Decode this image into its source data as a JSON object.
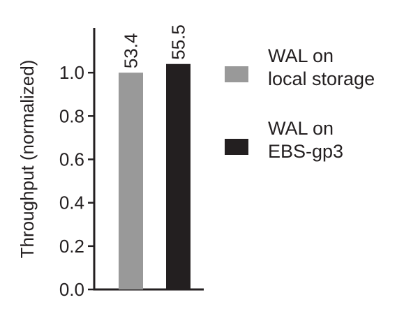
{
  "chart_data": {
    "type": "bar",
    "y_label": "Throughput (normalized)",
    "categories": [
      null
    ],
    "series": [
      {
        "name": "WAL on\nlocal storage",
        "color": "#999999",
        "values": [
          1.0
        ],
        "value_labels": [
          "53.4"
        ]
      },
      {
        "name": "WAL on\nEBS-gp3",
        "color": "#231f20",
        "values": [
          1.04
        ],
        "value_labels": [
          "55.5"
        ]
      }
    ],
    "ylim": [
      0,
      1.2
    ],
    "yticks": [
      {
        "value": 0,
        "label": "0.0"
      },
      0.2,
      0.4,
      0.6,
      0.8,
      {
        "value": 1,
        "label": "1.0"
      }
    ],
    "legend": "right"
  }
}
